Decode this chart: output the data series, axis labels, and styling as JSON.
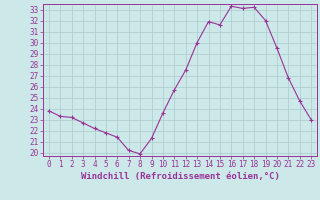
{
  "x": [
    0,
    1,
    2,
    3,
    4,
    5,
    6,
    7,
    8,
    9,
    10,
    11,
    12,
    13,
    14,
    15,
    16,
    17,
    18,
    19,
    20,
    21,
    22,
    23
  ],
  "y": [
    23.8,
    23.3,
    23.2,
    22.7,
    22.2,
    21.8,
    21.4,
    20.2,
    19.9,
    21.3,
    23.6,
    25.7,
    27.5,
    30.0,
    31.9,
    31.6,
    33.3,
    33.1,
    33.2,
    32.0,
    29.5,
    26.8,
    24.7,
    23.0
  ],
  "line_color": "#993399",
  "marker": "+",
  "marker_size": 3,
  "xlabel": "Windchill (Refroidissement éolien,°C)",
  "ylim_min": 19.7,
  "ylim_max": 33.5,
  "xlim_min": -0.5,
  "xlim_max": 23.5,
  "yticks": [
    20,
    21,
    22,
    23,
    24,
    25,
    26,
    27,
    28,
    29,
    30,
    31,
    32,
    33
  ],
  "xticks": [
    0,
    1,
    2,
    3,
    4,
    5,
    6,
    7,
    8,
    9,
    10,
    11,
    12,
    13,
    14,
    15,
    16,
    17,
    18,
    19,
    20,
    21,
    22,
    23
  ],
  "bg_color": "#cce8e8",
  "grid_color": "#aacccc",
  "line_width": 0.8,
  "tick_color": "#993399",
  "label_color": "#993399",
  "tick_fontsize": 5.5,
  "xlabel_fontsize": 6.5
}
